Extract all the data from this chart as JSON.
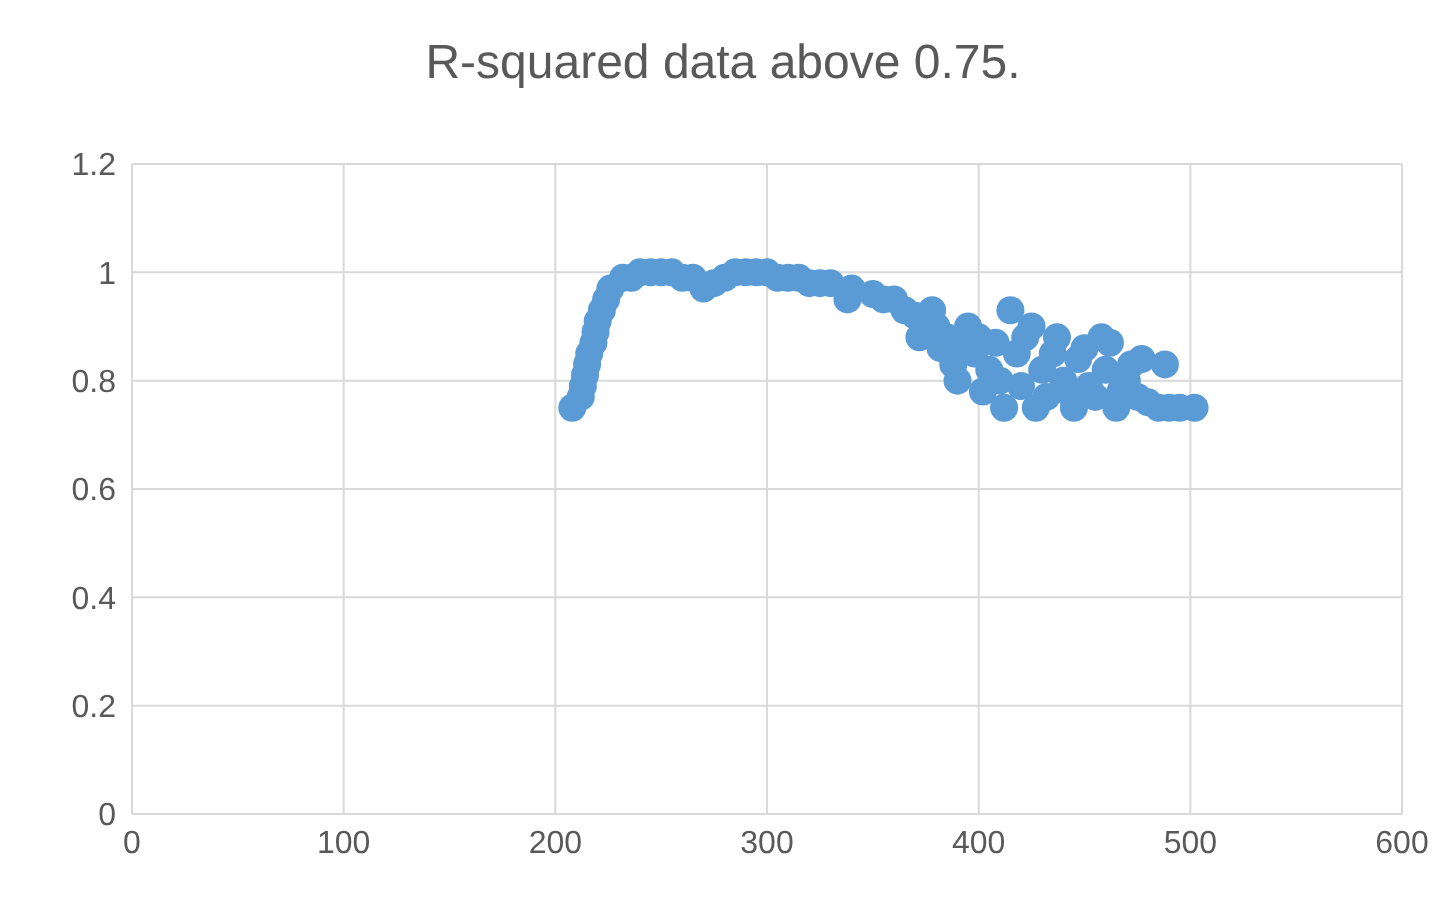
{
  "chart_data": {
    "type": "scatter",
    "title": "R-squared data above 0.75.",
    "xlim": [
      0,
      600
    ],
    "xticks": [
      0,
      100,
      200,
      300,
      400,
      500,
      600
    ],
    "ylim": [
      0,
      1.2
    ],
    "yticks": [
      0,
      {
        "value": 0.2,
        "label": "0.2"
      },
      {
        "value": 0.4,
        "label": "0.4"
      },
      {
        "value": 0.6,
        "label": "0.6"
      },
      {
        "value": 0.8,
        "label": "0.8"
      },
      1,
      {
        "value": 1.2,
        "label": "1.2"
      }
    ],
    "grid": true,
    "legend": false,
    "marker": "circle",
    "series": [
      {
        "color": "#5b9bd5",
        "x": [
          208,
          212,
          213,
          214,
          215,
          216,
          218,
          219,
          220,
          222,
          224,
          226,
          232,
          236,
          240,
          245,
          250,
          255,
          260,
          265,
          270,
          275,
          280,
          285,
          290,
          295,
          300,
          305,
          310,
          315,
          320,
          325,
          330,
          338,
          340,
          350,
          355,
          360,
          365,
          370,
          372,
          378,
          380,
          382,
          385,
          388,
          390,
          392,
          395,
          398,
          400,
          402,
          405,
          408,
          410,
          412,
          415,
          418,
          420,
          422,
          425,
          427,
          430,
          432,
          435,
          437,
          440,
          442,
          445,
          447,
          450,
          452,
          455,
          458,
          460,
          462,
          465,
          467,
          470,
          472,
          475,
          477,
          480,
          485,
          488,
          490,
          495,
          502
        ],
        "values": [
          0.75,
          0.77,
          0.79,
          0.81,
          0.83,
          0.85,
          0.87,
          0.89,
          0.91,
          0.93,
          0.95,
          0.97,
          0.99,
          0.99,
          1.0,
          1.0,
          1.0,
          1.0,
          0.99,
          0.99,
          0.97,
          0.98,
          0.99,
          1.0,
          1.0,
          1.0,
          1.0,
          0.99,
          0.99,
          0.99,
          0.98,
          0.98,
          0.98,
          0.95,
          0.97,
          0.96,
          0.95,
          0.95,
          0.93,
          0.92,
          0.88,
          0.93,
          0.9,
          0.86,
          0.88,
          0.83,
          0.8,
          0.86,
          0.9,
          0.85,
          0.88,
          0.78,
          0.82,
          0.87,
          0.8,
          0.75,
          0.93,
          0.85,
          0.79,
          0.88,
          0.9,
          0.75,
          0.82,
          0.77,
          0.85,
          0.88,
          0.8,
          0.78,
          0.75,
          0.84,
          0.86,
          0.79,
          0.77,
          0.88,
          0.82,
          0.87,
          0.75,
          0.78,
          0.8,
          0.83,
          0.77,
          0.84,
          0.76,
          0.75,
          0.83,
          0.75,
          0.75,
          0.75
        ]
      }
    ]
  }
}
